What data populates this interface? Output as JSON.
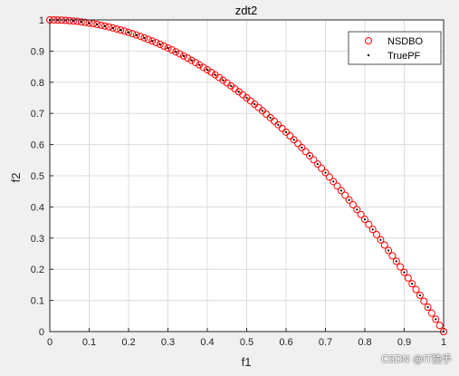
{
  "colors": {
    "figure_bg": "#f0f0f0",
    "axes_bg": "#ffffff",
    "grid": "#dcdcdc",
    "axis_line": "#262626",
    "nsdbo_marker": "#ff0000",
    "truepf_marker": "#000000"
  },
  "watermark": "CSDN @IT猿手",
  "chart_data": {
    "type": "scatter",
    "title": "zdt2",
    "xlabel": "f1",
    "ylabel": "f2",
    "xlim": [
      0,
      1
    ],
    "ylim": [
      0,
      1
    ],
    "xticks": [
      "0",
      "0.1",
      "0.2",
      "0.3",
      "0.4",
      "0.5",
      "0.6",
      "0.7",
      "0.8",
      "0.9",
      "1"
    ],
    "yticks": [
      "0",
      "0.1",
      "0.2",
      "0.3",
      "0.4",
      "0.5",
      "0.6",
      "0.7",
      "0.8",
      "0.9",
      "1"
    ],
    "grid": true,
    "legend_position": "top-right",
    "series": [
      {
        "name": "NSDBO",
        "marker": "open-circle",
        "color": "#ff0000",
        "relation": "y = 1 - x^2",
        "x_values": [
          0,
          0.01,
          0.02,
          0.03,
          0.04,
          0.05,
          0.06,
          0.07,
          0.08,
          0.09,
          0.1,
          0.11,
          0.12,
          0.13,
          0.14,
          0.15,
          0.16,
          0.17,
          0.18,
          0.19,
          0.2,
          0.21,
          0.22,
          0.23,
          0.24,
          0.25,
          0.26,
          0.27,
          0.28,
          0.29,
          0.3,
          0.31,
          0.32,
          0.33,
          0.34,
          0.35,
          0.36,
          0.37,
          0.38,
          0.39,
          0.4,
          0.41,
          0.42,
          0.43,
          0.44,
          0.45,
          0.46,
          0.47,
          0.48,
          0.49,
          0.5,
          0.51,
          0.52,
          0.53,
          0.54,
          0.55,
          0.56,
          0.57,
          0.58,
          0.59,
          0.6,
          0.61,
          0.62,
          0.63,
          0.64,
          0.65,
          0.66,
          0.67,
          0.68,
          0.69,
          0.7,
          0.71,
          0.72,
          0.73,
          0.74,
          0.75,
          0.76,
          0.77,
          0.78,
          0.79,
          0.8,
          0.81,
          0.82,
          0.83,
          0.84,
          0.85,
          0.86,
          0.87,
          0.88,
          0.89,
          0.9,
          0.91,
          0.92,
          0.93,
          0.94,
          0.95,
          0.96,
          0.97,
          0.98,
          0.99,
          1.0
        ]
      },
      {
        "name": "TruePF",
        "marker": "dot",
        "color": "#000000",
        "relation": "y = 1 - x^2",
        "x_values": [
          0,
          0.02,
          0.04,
          0.06,
          0.08,
          0.1,
          0.12,
          0.14,
          0.16,
          0.18,
          0.2,
          0.22,
          0.24,
          0.26,
          0.28,
          0.3,
          0.32,
          0.34,
          0.36,
          0.38,
          0.4,
          0.42,
          0.44,
          0.46,
          0.48,
          0.5,
          0.52,
          0.54,
          0.56,
          0.58,
          0.6,
          0.62,
          0.64,
          0.66,
          0.68,
          0.7,
          0.72,
          0.74,
          0.76,
          0.78,
          0.8,
          0.82,
          0.84,
          0.86,
          0.88,
          0.9,
          0.92,
          0.94,
          0.96,
          0.98,
          1.0
        ]
      }
    ]
  }
}
